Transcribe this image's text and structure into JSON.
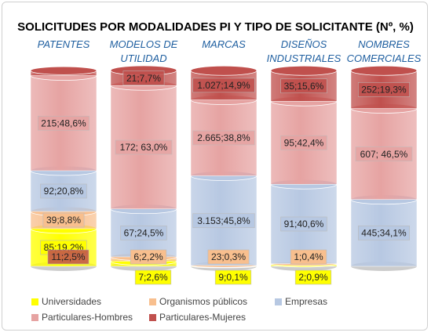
{
  "chart_data": {
    "type": "stacked-cylinder",
    "title": "SOLICITUDES POR  MODALIDADES PI Y TIPO DE SOLICITANTE (Nº, %)",
    "categories": [
      "PATENTES",
      "MODELOS DE UTILIDAD",
      "MARCAS",
      "DISEÑOS INDUSTRIALES",
      "NOMBRES COMERCIALES"
    ],
    "ylim": [
      0,
      100
    ],
    "series": [
      {
        "name": "Universidades",
        "color": "#ffff00",
        "values": [
          19.2,
          2.6,
          0.1,
          0.9,
          null
        ],
        "value_labels": [
          "85;19,2%",
          "7;2,6%",
          "9;0,1%",
          "2;0,9%",
          null
        ]
      },
      {
        "name": "Organismos públicos",
        "color": "#f8bf8e",
        "values": [
          8.8,
          2.2,
          0.3,
          0.4,
          null
        ],
        "value_labels": [
          "39;8,8%",
          "6;2,2%",
          "23;0,3%",
          "1;0,4%",
          null
        ]
      },
      {
        "name": "Empresas",
        "color": "#b7c8e2",
        "values": [
          20.8,
          24.5,
          45.8,
          40.6,
          34.1
        ],
        "value_labels": [
          "92;20,8%",
          "67;24,5%",
          "3.153;45,8%",
          "91;40,6%",
          "445;34,1%"
        ]
      },
      {
        "name": "Particulares-Hombres",
        "color": "#e6a3a2",
        "values": [
          48.6,
          63.0,
          38.8,
          42.4,
          46.5
        ],
        "value_labels": [
          "215;48,6%",
          "172; 63,0%",
          "2.665;38,8%",
          "95;42,4%",
          "607; 46,5%"
        ]
      },
      {
        "name": "Particulares-Mujeres",
        "color": "#c0504d",
        "values": [
          2.5,
          7.7,
          14.9,
          15.6,
          19.3
        ],
        "value_labels": [
          "11;2,5%",
          "21;7,7%",
          "1.027;14,9%",
          "35;15,6%",
          "252;19,3%"
        ]
      }
    ]
  }
}
